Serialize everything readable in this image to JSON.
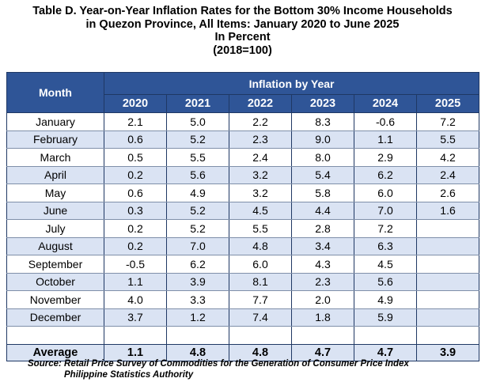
{
  "title": {
    "line1": "Table D. Year-on-Year Inflation Rates for the Bottom 30% Income Households",
    "line2": "in Quezon Province, All Items: January 2020 to June 2025",
    "line3": "In Percent",
    "line4": "(2018=100)"
  },
  "table": {
    "month_header": "Month",
    "group_header": "Inflation by Year",
    "years": [
      "2020",
      "2021",
      "2022",
      "2023",
      "2024",
      "2025"
    ],
    "rows": [
      {
        "month": "January",
        "values": [
          "2.1",
          "5.0",
          "2.2",
          "8.3",
          "-0.6",
          "7.2"
        ]
      },
      {
        "month": "February",
        "values": [
          "0.6",
          "5.2",
          "2.3",
          "9.0",
          "1.1",
          "5.5"
        ]
      },
      {
        "month": "March",
        "values": [
          "0.5",
          "5.5",
          "2.4",
          "8.0",
          "2.9",
          "4.2"
        ]
      },
      {
        "month": "April",
        "values": [
          "0.2",
          "5.6",
          "3.2",
          "5.4",
          "6.2",
          "2.4"
        ]
      },
      {
        "month": "May",
        "values": [
          "0.6",
          "4.9",
          "3.2",
          "5.8",
          "6.0",
          "2.6"
        ]
      },
      {
        "month": "June",
        "values": [
          "0.3",
          "5.2",
          "4.5",
          "4.4",
          "7.0",
          "1.6"
        ]
      },
      {
        "month": "July",
        "values": [
          "0.2",
          "5.2",
          "5.5",
          "2.8",
          "7.2",
          ""
        ]
      },
      {
        "month": "August",
        "values": [
          "0.2",
          "7.0",
          "4.8",
          "3.4",
          "6.3",
          ""
        ]
      },
      {
        "month": "September",
        "values": [
          "-0.5",
          "6.2",
          "6.0",
          "4.3",
          "4.5",
          ""
        ]
      },
      {
        "month": "October",
        "values": [
          "1.1",
          "3.9",
          "8.1",
          "2.3",
          "5.6",
          ""
        ]
      },
      {
        "month": "November",
        "values": [
          "4.0",
          "3.3",
          "7.7",
          "2.0",
          "4.9",
          ""
        ]
      },
      {
        "month": "December",
        "values": [
          "3.7",
          "1.2",
          "7.4",
          "1.8",
          "5.9",
          ""
        ]
      }
    ],
    "average": {
      "label": "Average",
      "values": [
        "1.1",
        "4.8",
        "4.8",
        "4.7",
        "4.7",
        "3.9"
      ]
    }
  },
  "source": {
    "line1": "Source: Retail Price Survey of Commodities for the Generation of Consumer Price Index",
    "line2": "Philippine Statistics Authority"
  },
  "colors": {
    "header_bg": "#2f5597",
    "alt_row_bg": "#dae3f3"
  }
}
